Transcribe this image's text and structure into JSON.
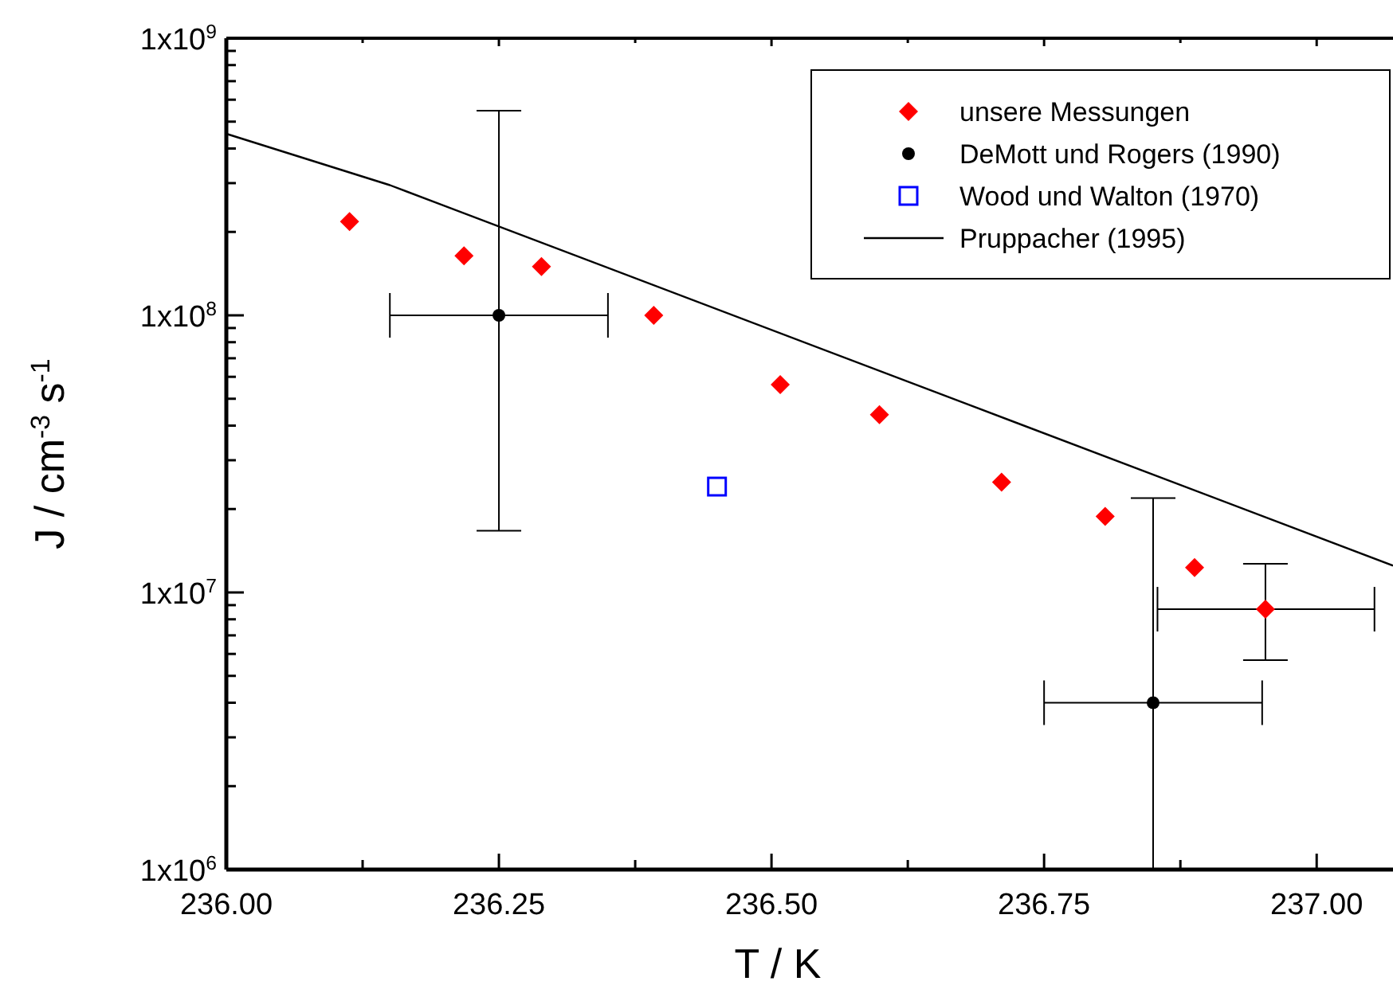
{
  "chart_data": {
    "type": "scatter",
    "xlabel": "T / K",
    "ylabel": "J / cm$^{-3}$ s$^{-1}$",
    "log": "y",
    "legend": "top right",
    "grid": false,
    "xlim": [
      236.0,
      237.07
    ],
    "xticks": [
      {
        "value": 236.0,
        "label": "236.00"
      },
      {
        "value": 236.125,
        "label": null
      },
      {
        "value": 236.25,
        "label": "236.25"
      },
      {
        "value": 236.375,
        "label": null
      },
      {
        "value": 236.5,
        "label": "236.50"
      },
      {
        "value": 236.625,
        "label": null
      },
      {
        "value": 236.75,
        "label": "236.75"
      },
      {
        "value": 236.875,
        "label": null
      },
      {
        "value": 237.0,
        "label": "237.00"
      }
    ],
    "ylim": [
      1000000,
      1000000000
    ],
    "yticks": [
      {
        "value": 1000000,
        "label": "1x10$^{6}$"
      },
      {
        "value": 2000000,
        "label": null
      },
      {
        "value": 3000000,
        "label": null
      },
      {
        "value": 4000000,
        "label": null
      },
      {
        "value": 5000000,
        "label": null
      },
      {
        "value": 6000000,
        "label": null
      },
      {
        "value": 7000000,
        "label": null
      },
      {
        "value": 8000000,
        "label": null
      },
      {
        "value": 9000000,
        "label": null
      },
      {
        "value": 10000000,
        "label": "1x10$^{7}$"
      },
      {
        "value": 20000000,
        "label": null
      },
      {
        "value": 30000000,
        "label": null
      },
      {
        "value": 40000000,
        "label": null
      },
      {
        "value": 50000000,
        "label": null
      },
      {
        "value": 60000000,
        "label": null
      },
      {
        "value": 70000000,
        "label": null
      },
      {
        "value": 80000000,
        "label": null
      },
      {
        "value": 90000000,
        "label": null
      },
      {
        "value": 100000000,
        "label": "1x10$^{8}$"
      },
      {
        "value": 200000000,
        "label": null
      },
      {
        "value": 300000000,
        "label": null
      },
      {
        "value": 400000000,
        "label": null
      },
      {
        "value": 500000000,
        "label": null
      },
      {
        "value": 600000000,
        "label": null
      },
      {
        "value": 700000000,
        "label": null
      },
      {
        "value": 800000000,
        "label": null
      },
      {
        "value": 900000000,
        "label": null
      },
      {
        "value": 1000000000,
        "label": "1x10$^{9}$"
      }
    ],
    "series": [
      {
        "name": "unsere Messungen",
        "marker": "diamond",
        "color": "#ff0000",
        "x": [
          236.113,
          236.218,
          236.289,
          236.392,
          236.508,
          236.599,
          236.711,
          236.806,
          236.888,
          236.953
        ],
        "values": [
          218000000,
          164000000,
          150000000,
          100000000,
          56200000,
          43800000,
          25000000,
          18800000,
          12300000,
          8700000
        ],
        "errors": [
          null,
          null,
          null,
          null,
          null,
          null,
          null,
          null,
          null,
          [
            5700000,
            12700000
          ]
        ],
        "xerrors": [
          null,
          null,
          null,
          null,
          null,
          null,
          null,
          null,
          null,
          [
            236.854,
            237.053
          ]
        ]
      },
      {
        "name": "DeMott und Rogers (1990)",
        "marker": "circle",
        "color": "#000000",
        "x": [
          236.25,
          236.85
        ],
        "values": [
          100000000,
          4000000
        ],
        "errors": [
          [
            16700000,
            548000000
          ],
          [
            1000000,
            21900000
          ]
        ],
        "xerrors": [
          [
            236.15,
            236.35
          ],
          [
            236.75,
            236.95
          ]
        ]
      },
      {
        "name": "Wood und Walton (1970)",
        "marker": "square",
        "color": "#0000ff",
        "x": [
          236.45
        ],
        "values": [
          24100000
        ]
      },
      {
        "name": "Pruppacher (1995)",
        "type": "line",
        "marker": "none",
        "line_style": "solid",
        "color": "#000000",
        "x": [
          236.0,
          236.15,
          237.07
        ],
        "values": [
          452000000,
          295000000,
          12500000
        ]
      }
    ]
  }
}
